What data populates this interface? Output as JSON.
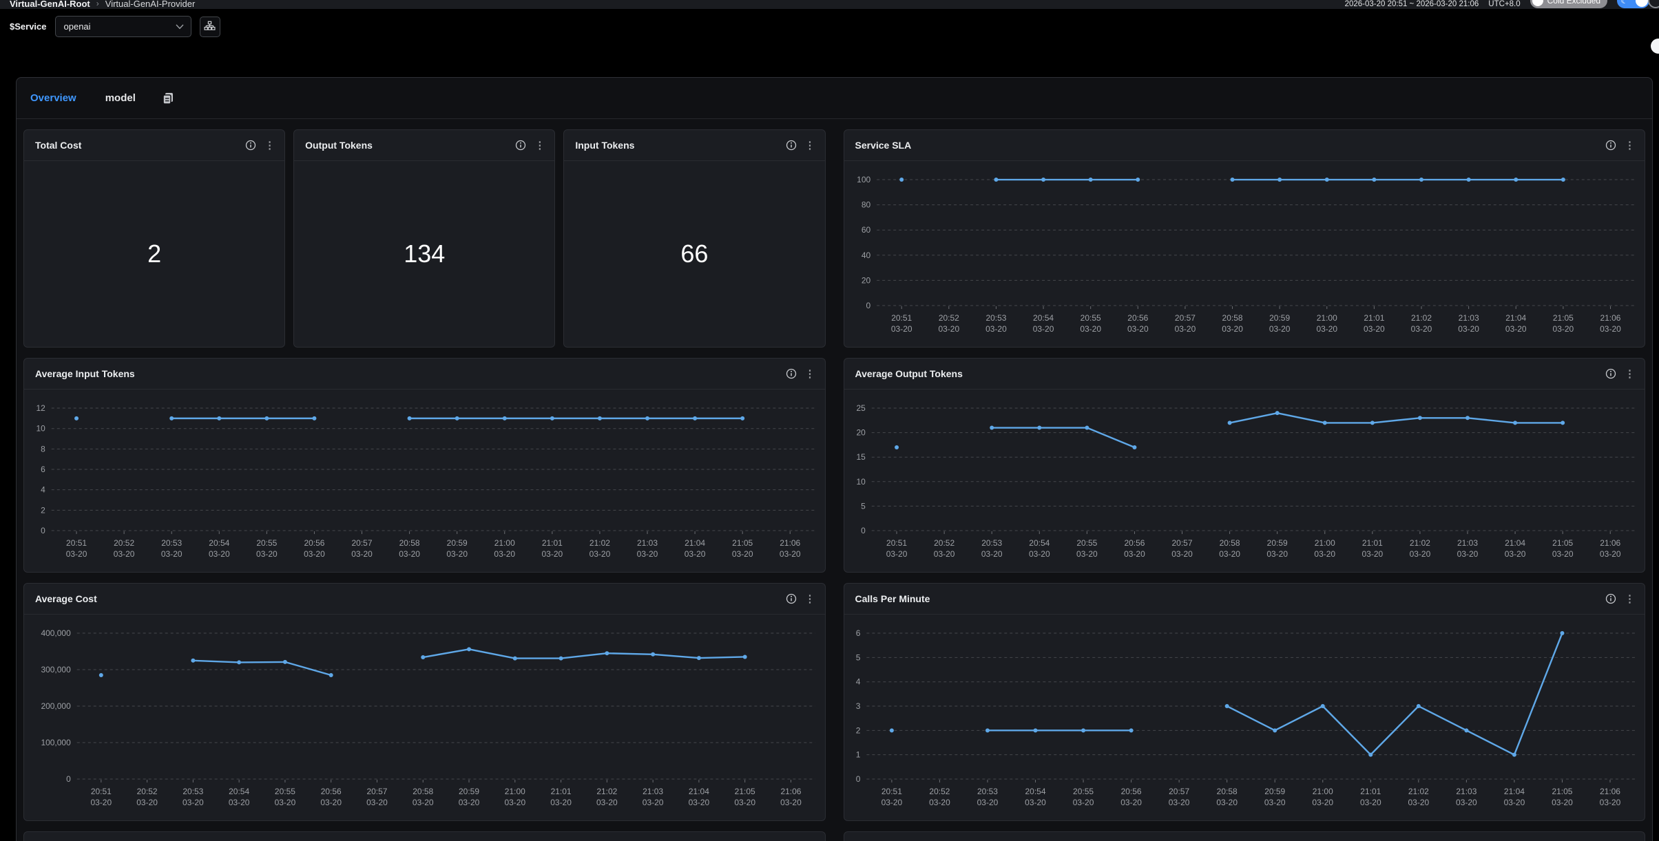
{
  "topbar": {
    "breadcrumb": {
      "root": "Virtual-GenAI-Root",
      "separator": "›",
      "current": "Virtual-GenAI-Provider"
    },
    "time_range": "2026-03-20 20:51 ~ 2026-03-20 21:06",
    "timezone": "UTC+8.0",
    "cold_excluded_label": "Cold Excluded",
    "moon_icon": "☾"
  },
  "filter_bar": {
    "label": "$Service",
    "value": "openai"
  },
  "tabs": {
    "overview": "Overview",
    "model": "model"
  },
  "stats": [
    {
      "title": "Total Cost",
      "value": "2"
    },
    {
      "title": "Output Tokens",
      "value": "134"
    },
    {
      "title": "Input Tokens",
      "value": "66"
    }
  ],
  "colors": {
    "line_blue": "#5fa8e8",
    "tab_active": "#3f97ff",
    "toggle_blue": "#3f8cf7",
    "toggle_gray": "#8e8e93",
    "panel_bg": "#1b1d22",
    "page_bg": "#000000",
    "grid": "#45474c",
    "axis_text": "#9da0a5"
  },
  "chart_data": [
    {
      "type": "line",
      "title": "Service SLA",
      "x": [
        "20:51",
        "20:52",
        "20:53",
        "20:54",
        "20:55",
        "20:56",
        "20:57",
        "20:58",
        "20:59",
        "21:00",
        "21:01",
        "21:02",
        "21:03",
        "21:04",
        "21:05",
        "21:06"
      ],
      "x_date": "03-20",
      "values": [
        100,
        null,
        100,
        100,
        100,
        100,
        null,
        100,
        100,
        100,
        100,
        100,
        100,
        100,
        100,
        null
      ],
      "ylim": [
        0,
        100
      ],
      "yticks": [
        0,
        20,
        40,
        60,
        80,
        100
      ],
      "ytick_labels": [
        "0",
        "20",
        "40",
        "60",
        "80",
        "100"
      ],
      "grid": true,
      "legend": "none",
      "line_color": "#5fa8e8"
    },
    {
      "type": "line",
      "title": "Average Input Tokens",
      "x": [
        "20:51",
        "20:52",
        "20:53",
        "20:54",
        "20:55",
        "20:56",
        "20:57",
        "20:58",
        "20:59",
        "21:00",
        "21:01",
        "21:02",
        "21:03",
        "21:04",
        "21:05",
        "21:06"
      ],
      "x_date": "03-20",
      "values": [
        11,
        null,
        11,
        11,
        11,
        11,
        null,
        11,
        11,
        11,
        11,
        11,
        11,
        11,
        11,
        null
      ],
      "ylim": [
        0,
        12
      ],
      "yticks": [
        0,
        2,
        4,
        6,
        8,
        10,
        12
      ],
      "ytick_labels": [
        "0",
        "2",
        "4",
        "6",
        "8",
        "10",
        "12"
      ],
      "grid": true,
      "legend": "none",
      "line_color": "#5fa8e8"
    },
    {
      "type": "line",
      "title": "Average Output Tokens",
      "x": [
        "20:51",
        "20:52",
        "20:53",
        "20:54",
        "20:55",
        "20:56",
        "20:57",
        "20:58",
        "20:59",
        "21:00",
        "21:01",
        "21:02",
        "21:03",
        "21:04",
        "21:05",
        "21:06"
      ],
      "x_date": "03-20",
      "values": [
        17,
        null,
        21,
        21,
        21,
        17,
        null,
        22,
        24,
        22,
        22,
        23,
        23,
        22,
        22,
        null
      ],
      "ylim": [
        0,
        25
      ],
      "yticks": [
        0,
        5,
        10,
        15,
        20,
        25
      ],
      "ytick_labels": [
        "0",
        "5",
        "10",
        "15",
        "20",
        "25"
      ],
      "grid": true,
      "legend": "none",
      "line_color": "#5fa8e8"
    },
    {
      "type": "line",
      "title": "Average Cost",
      "x": [
        "20:51",
        "20:52",
        "20:53",
        "20:54",
        "20:55",
        "20:56",
        "20:57",
        "20:58",
        "20:59",
        "21:00",
        "21:01",
        "21:02",
        "21:03",
        "21:04",
        "21:05",
        "21:06"
      ],
      "x_date": "03-20",
      "values": [
        285000,
        null,
        325000,
        320000,
        321000,
        285000,
        null,
        334000,
        356000,
        331000,
        331000,
        345000,
        342000,
        332000,
        335000,
        null
      ],
      "ylim": [
        0,
        400000
      ],
      "yticks": [
        0,
        100000,
        200000,
        300000,
        400000
      ],
      "ytick_labels": [
        "0",
        "100,000",
        "200,000",
        "300,000",
        "400,000"
      ],
      "grid": true,
      "legend": "none",
      "line_color": "#5fa8e8"
    },
    {
      "type": "line",
      "title": "Calls Per Minute",
      "x": [
        "20:51",
        "20:52",
        "20:53",
        "20:54",
        "20:55",
        "20:56",
        "20:57",
        "20:58",
        "20:59",
        "21:00",
        "21:01",
        "21:02",
        "21:03",
        "21:04",
        "21:05",
        "21:06"
      ],
      "x_date": "03-20",
      "values": [
        2,
        null,
        2,
        2,
        2,
        2,
        null,
        3,
        2,
        3,
        1,
        3,
        2,
        1,
        6,
        null
      ],
      "ylim": [
        0,
        6
      ],
      "yticks": [
        0,
        1,
        2,
        3,
        4,
        5,
        6
      ],
      "ytick_labels": [
        "0",
        "1",
        "2",
        "3",
        "4",
        "5",
        "6"
      ],
      "grid": true,
      "legend": "none",
      "line_color": "#5fa8e8"
    }
  ]
}
